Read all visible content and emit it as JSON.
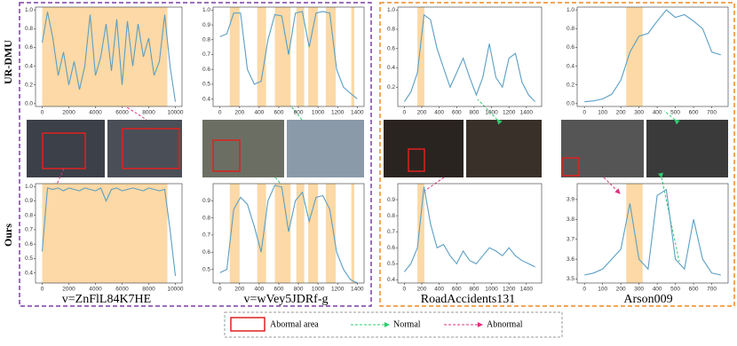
{
  "row_labels": [
    "UR-DMU",
    "Ours"
  ],
  "captions": [
    "v=ZnFlL84K7HE",
    "v=wVey5JDRf-g",
    "RoadAccidents131",
    "Arson009"
  ],
  "legend": {
    "abnormal_area": "Abormal area",
    "normal": "Normal",
    "abnormal": "Abnormal"
  },
  "chart_data": [
    {
      "type": "line",
      "color": "#5b9fc4",
      "shade_color": "#fcd9a6",
      "x": [
        0,
        400,
        800,
        1200,
        1600,
        2000,
        2400,
        2800,
        3200,
        3600,
        4000,
        4400,
        4800,
        5200,
        5600,
        6000,
        6400,
        6800,
        7200,
        7600,
        8000,
        8400,
        8800,
        9200,
        9600,
        10000
      ],
      "values": [
        0.65,
        0.98,
        0.7,
        0.3,
        0.55,
        0.2,
        0.45,
        0.15,
        0.4,
        0.95,
        0.3,
        0.5,
        0.85,
        0.35,
        0.9,
        0.2,
        0.88,
        0.4,
        0.85,
        0.5,
        0.7,
        0.3,
        0.45,
        0.95,
        0.4,
        0.02
      ],
      "abnormal_spans": [
        [
          0,
          9400
        ]
      ],
      "xlim": [
        -500,
        10500
      ],
      "ylim": [
        -0.03,
        1.03
      ],
      "xticks": [
        0,
        2000,
        4000,
        6000,
        8000,
        10000
      ],
      "yticks": [
        {
          "value": 0,
          "label": "0.0"
        },
        0.2,
        0.4,
        0.6,
        0.8,
        {
          "value": 1,
          "label": "1.0"
        }
      ]
    },
    {
      "type": "line",
      "color": "#5b9fc4",
      "shade_color": "#fcd9a6",
      "x": [
        0,
        70,
        140,
        210,
        280,
        350,
        420,
        490,
        560,
        630,
        700,
        770,
        840,
        910,
        980,
        1050,
        1120,
        1190,
        1260,
        1330,
        1400
      ],
      "values": [
        0.82,
        0.84,
        0.98,
        0.98,
        0.6,
        0.5,
        0.52,
        0.8,
        0.97,
        0.96,
        0.7,
        0.98,
        0.99,
        0.75,
        0.98,
        0.99,
        0.98,
        0.6,
        0.48,
        0.44,
        0.4
      ],
      "abnormal_spans": [
        [
          100,
          200
        ],
        [
          380,
          470
        ],
        [
          560,
          720
        ],
        [
          780,
          860
        ],
        [
          900,
          1000
        ],
        [
          1080,
          1180
        ],
        [
          1340,
          1370
        ]
      ],
      "xlim": [
        -70,
        1470
      ],
      "ylim": [
        0.35,
        1.02
      ],
      "xticks": [
        0,
        200,
        400,
        600,
        800,
        1000,
        1200,
        1400
      ],
      "yticks": [
        0.4,
        0.5,
        0.6,
        0.7,
        0.8,
        0.9,
        {
          "value": 1,
          "label": "1.0"
        }
      ]
    },
    {
      "type": "line",
      "color": "#5b9fc4",
      "shade_color": "#fcd9a6",
      "x": [
        0,
        75,
        150,
        225,
        300,
        375,
        450,
        525,
        600,
        675,
        750,
        825,
        900,
        975,
        1050,
        1125,
        1200,
        1275,
        1350,
        1425,
        1500
      ],
      "values": [
        0.05,
        0.15,
        0.35,
        0.95,
        0.9,
        0.6,
        0.4,
        0.2,
        0.35,
        0.5,
        0.3,
        0.12,
        0.3,
        0.65,
        0.3,
        0.2,
        0.5,
        0.55,
        0.25,
        0.12,
        0.05
      ],
      "abnormal_spans": [
        [
          150,
          230
        ]
      ],
      "xlim": [
        -75,
        1575
      ],
      "ylim": [
        0,
        1.03
      ],
      "xticks": [
        0,
        200,
        400,
        600,
        800,
        1000,
        1200,
        1400
      ],
      "yticks": [
        0.2,
        0.4,
        0.6,
        0.8,
        {
          "value": 1,
          "label": "1.0"
        }
      ]
    },
    {
      "type": "line",
      "color": "#5b9fc4",
      "shade_color": "#fcd9a6",
      "x": [
        0,
        50,
        100,
        150,
        200,
        250,
        300,
        350,
        400,
        450,
        500,
        550,
        600,
        650,
        700,
        750
      ],
      "values": [
        0.02,
        0.03,
        0.05,
        0.1,
        0.25,
        0.55,
        0.72,
        0.75,
        0.88,
        1.0,
        0.92,
        0.95,
        0.88,
        0.8,
        0.55,
        0.52
      ],
      "abnormal_spans": [
        [
          230,
          320
        ]
      ],
      "xlim": [
        -40,
        790
      ],
      "ylim": [
        -0.03,
        1.03
      ],
      "xticks": [
        0,
        100,
        200,
        300,
        400,
        500,
        600,
        700
      ],
      "yticks": [
        {
          "value": 0,
          "label": "0.0"
        },
        0.2,
        0.4,
        0.6,
        0.8,
        {
          "value": 1,
          "label": "1.0"
        }
      ]
    },
    {
      "type": "line",
      "color": "#5b9fc4",
      "shade_color": "#fcd9a6",
      "x": [
        0,
        400,
        800,
        1200,
        1600,
        2000,
        2400,
        2800,
        3200,
        3600,
        4000,
        4400,
        4800,
        5200,
        5600,
        6000,
        6400,
        6800,
        7200,
        7600,
        8000,
        8400,
        8800,
        9200,
        9600,
        10000
      ],
      "values": [
        0.55,
        0.99,
        0.98,
        0.99,
        0.97,
        0.99,
        0.98,
        0.97,
        0.99,
        0.98,
        0.97,
        0.99,
        0.9,
        0.98,
        0.99,
        0.97,
        0.98,
        0.99,
        0.98,
        0.97,
        0.99,
        0.98,
        0.97,
        0.98,
        0.7,
        0.38
      ],
      "abnormal_spans": [
        [
          0,
          9400
        ]
      ],
      "xlim": [
        -500,
        10500
      ],
      "ylim": [
        0.33,
        1.02
      ],
      "xticks": [
        0,
        2000,
        4000,
        6000,
        8000,
        10000
      ],
      "yticks": [
        0.4,
        0.5,
        0.6,
        0.7,
        0.8,
        0.9,
        {
          "value": 1,
          "label": "1.0"
        }
      ]
    },
    {
      "type": "line",
      "color": "#5b9fc4",
      "shade_color": "#fcd9a6",
      "x": [
        0,
        70,
        140,
        210,
        280,
        350,
        420,
        490,
        560,
        630,
        700,
        770,
        840,
        910,
        980,
        1050,
        1120,
        1190,
        1260,
        1330,
        1400
      ],
      "values": [
        0.48,
        0.5,
        0.85,
        0.92,
        0.88,
        0.75,
        0.6,
        0.9,
        0.99,
        0.98,
        0.72,
        0.9,
        0.95,
        0.78,
        0.92,
        0.93,
        0.85,
        0.6,
        0.5,
        0.44,
        0.42
      ],
      "abnormal_spans": [
        [
          100,
          200
        ],
        [
          380,
          470
        ],
        [
          560,
          720
        ],
        [
          780,
          860
        ],
        [
          900,
          1000
        ],
        [
          1080,
          1180
        ],
        [
          1340,
          1370
        ]
      ],
      "xlim": [
        -70,
        1470
      ],
      "ylim": [
        0.42,
        1.0
      ],
      "xticks": [
        0,
        200,
        400,
        600,
        800,
        1000,
        1200,
        1400
      ],
      "yticks": [
        0.5,
        0.6,
        0.7,
        0.8,
        0.9
      ]
    },
    {
      "type": "line",
      "color": "#5b9fc4",
      "shade_color": "#fcd9a6",
      "x": [
        0,
        75,
        150,
        225,
        300,
        375,
        450,
        525,
        600,
        675,
        750,
        825,
        900,
        975,
        1050,
        1125,
        1200,
        1275,
        1350,
        1425,
        1500
      ],
      "values": [
        0.45,
        0.5,
        0.6,
        0.98,
        0.75,
        0.6,
        0.62,
        0.55,
        0.5,
        0.58,
        0.52,
        0.5,
        0.55,
        0.6,
        0.58,
        0.55,
        0.6,
        0.55,
        0.52,
        0.5,
        0.48
      ],
      "abnormal_spans": [
        [
          150,
          230
        ]
      ],
      "xlim": [
        -75,
        1575
      ],
      "ylim": [
        0.38,
        1.0
      ],
      "xticks": [
        0,
        200,
        400,
        600,
        800,
        1000,
        1200,
        1400
      ],
      "yticks": [
        0.4,
        0.5,
        0.6,
        0.7,
        0.8,
        0.9
      ]
    },
    {
      "type": "line",
      "color": "#5b9fc4",
      "shade_color": "#fcd9a6",
      "x": [
        0,
        50,
        100,
        150,
        200,
        250,
        300,
        350,
        400,
        450,
        500,
        550,
        600,
        650,
        700,
        750
      ],
      "values": [
        3.52,
        3.53,
        3.55,
        3.6,
        3.65,
        3.88,
        3.6,
        3.55,
        3.92,
        3.95,
        3.6,
        3.55,
        3.8,
        3.6,
        3.53,
        3.52
      ],
      "abnormal_spans": [
        [
          230,
          320
        ]
      ],
      "xlim": [
        -40,
        790
      ],
      "ylim": [
        3.48,
        3.98
      ],
      "xticks": [
        0,
        100,
        200,
        300,
        400,
        500,
        600,
        700
      ],
      "yticks": [
        3.5,
        3.6,
        3.7,
        3.8,
        3.9
      ]
    }
  ]
}
